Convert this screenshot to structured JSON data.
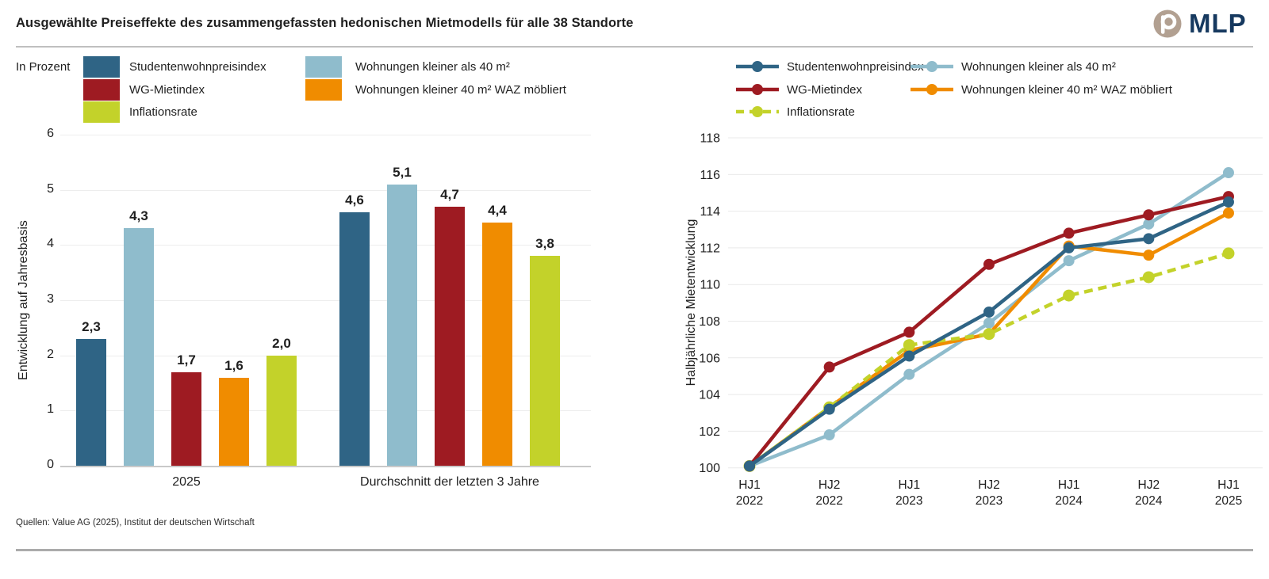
{
  "title": "Ausgewählte Preiseffekte des zusammengefassten hedonischen Mietmodells für alle 38 Standorte",
  "logo": {
    "text": "MLP"
  },
  "footer": {
    "sources": "Quellen: Value AG (2025), Institut der deutschen Wirtschaft"
  },
  "colors": {
    "darkblue": "#2F6485",
    "lightblue": "#8FBCCC",
    "darkred": "#9E1B22",
    "orange": "#F08C00",
    "green": "#C3D22A",
    "navy": "#16395F",
    "tan": "#B2A091",
    "grid": "#ECECEC",
    "axisline": "#C9C9C9",
    "text": "#1F1F1F"
  },
  "legend_left": {
    "heading": "In Prozent",
    "columns": [
      [
        {
          "label": "Studentenwohnpreisindex",
          "color": "#2F6485"
        },
        {
          "label": "WG-Mietindex",
          "color": "#9E1B22"
        },
        {
          "label": "Inflationsrate",
          "color": "#C3D22A"
        }
      ],
      [
        {
          "label": "Wohnungen kleiner als 40 m²",
          "color": "#8FBCCC"
        },
        {
          "label": "Wohnungen kleiner 40 m² WAZ möbliert",
          "color": "#F08C00"
        }
      ]
    ]
  },
  "legend_right": {
    "columns": [
      [
        {
          "label": "Studentenwohnpreisindex",
          "color": "#2F6485",
          "dashed": false
        },
        {
          "label": "WG-Mietindex",
          "color": "#9E1B22",
          "dashed": false
        },
        {
          "label": "Inflationsrate",
          "color": "#C3D22A",
          "dashed": true
        }
      ],
      [
        {
          "label": "Wohnungen kleiner als 40 m²",
          "color": "#8FBCCC",
          "dashed": false
        },
        {
          "label": "Wohnungen kleiner 40 m² WAZ möbliert",
          "color": "#F08C00",
          "dashed": false
        }
      ]
    ]
  },
  "chart_data": [
    {
      "type": "bar",
      "unit_label": "In Prozent",
      "ylabel": "Entwicklung auf Jahresbasis",
      "ylim": [
        0,
        6
      ],
      "ytick_step": 1,
      "yticks": [
        "0",
        "1",
        "2",
        "3",
        "4",
        "5",
        "6"
      ],
      "categories": [
        "2025",
        "Durchschnitt der letzten 3 Jahre"
      ],
      "series": [
        {
          "name": "Studentenwohnpreisindex",
          "color": "#2F6485",
          "values": [
            2.3,
            4.6
          ],
          "labels": [
            "2,3",
            "4,6"
          ]
        },
        {
          "name": "Wohnungen kleiner als 40 m²",
          "color": "#8FBCCC",
          "values": [
            4.3,
            5.1
          ],
          "labels": [
            "4,3",
            "5,1"
          ]
        },
        {
          "name": "WG-Mietindex",
          "color": "#9E1B22",
          "values": [
            1.7,
            4.7
          ],
          "labels": [
            "1,7",
            "4,7"
          ]
        },
        {
          "name": "Wohnungen kleiner 40 m² WAZ möbliert",
          "color": "#F08C00",
          "values": [
            1.6,
            4.4
          ],
          "labels": [
            "1,6",
            "4,4"
          ]
        },
        {
          "name": "Inflationsrate",
          "color": "#C3D22A",
          "values": [
            2.0,
            3.8
          ],
          "labels": [
            "2,0",
            "3,8"
          ]
        }
      ],
      "grid": true,
      "legend_position": "top"
    },
    {
      "type": "line",
      "ylabel": "Halbjährliche Mietentwicklung",
      "ylim": [
        100,
        118
      ],
      "ytick_step": 2,
      "yticks": [
        "100",
        "102",
        "104",
        "106",
        "108",
        "110",
        "112",
        "114",
        "116",
        "118"
      ],
      "x": [
        [
          "HJ1",
          "2022"
        ],
        [
          "HJ2",
          "2022"
        ],
        [
          "HJ1",
          "2023"
        ],
        [
          "HJ2",
          "2023"
        ],
        [
          "HJ1",
          "2024"
        ],
        [
          "HJ2",
          "2024"
        ],
        [
          "HJ1",
          "2025"
        ]
      ],
      "series": [
        {
          "name": "Studentenwohnpreisindex",
          "color": "#2F6485",
          "dashed": false,
          "values": [
            100.1,
            103.2,
            106.1,
            108.5,
            112.0,
            112.5,
            114.5
          ]
        },
        {
          "name": "WG-Mietindex",
          "color": "#9E1B22",
          "dashed": false,
          "values": [
            100.1,
            105.5,
            107.4,
            111.1,
            112.8,
            113.8,
            114.8
          ]
        },
        {
          "name": "Inflationsrate",
          "color": "#C3D22A",
          "dashed": true,
          "values": [
            100.1,
            103.3,
            106.7,
            107.3,
            109.4,
            110.4,
            111.7
          ]
        },
        {
          "name": "Wohnungen kleiner als 40 m²",
          "color": "#8FBCCC",
          "dashed": false,
          "values": [
            100.1,
            101.8,
            105.1,
            107.9,
            111.3,
            113.3,
            116.1
          ]
        },
        {
          "name": "Wohnungen kleiner 40 m² WAZ möbliert",
          "color": "#F08C00",
          "dashed": false,
          "values": [
            100.1,
            103.3,
            106.4,
            107.3,
            112.1,
            111.6,
            113.9
          ]
        }
      ],
      "grid": true,
      "legend_position": "top"
    }
  ]
}
